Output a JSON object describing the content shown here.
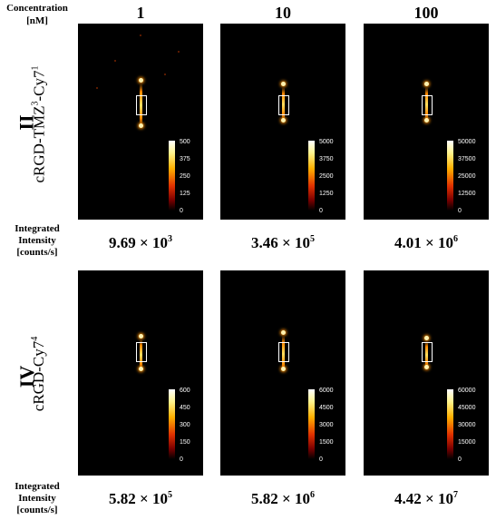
{
  "header": {
    "concentration_label_line1": "Concentration",
    "concentration_label_line2": "[nM]",
    "columns": [
      "1",
      "10",
      "100"
    ]
  },
  "intensity_label": {
    "line1": "Integrated",
    "line2": "Intensity",
    "line3": "[counts/s]"
  },
  "rows": [
    {
      "roman": "II",
      "name_main": "cRGD-TMZ",
      "name_sup1": "3",
      "name_mid": "-Cy7",
      "name_sup2": "1",
      "panels": [
        {
          "ticks": [
            "500",
            "375",
            "250",
            "125",
            "0"
          ],
          "mantissa": "9.69 × 10",
          "exponent": "3"
        },
        {
          "ticks": [
            "5000",
            "3750",
            "2500",
            "1250",
            "0"
          ],
          "mantissa": "3.46 × 10",
          "exponent": "5"
        },
        {
          "ticks": [
            "50000",
            "37500",
            "25000",
            "12500",
            "0"
          ],
          "mantissa": "4.01 × 10",
          "exponent": "6"
        }
      ]
    },
    {
      "roman": "IV",
      "name_main": "cRGD-Cy7",
      "name_sup1": "4",
      "panels": [
        {
          "ticks": [
            "600",
            "450",
            "300",
            "150",
            "0"
          ],
          "mantissa": "5.82 × 10",
          "exponent": "5"
        },
        {
          "ticks": [
            "6000",
            "4500",
            "3000",
            "1500",
            "0"
          ],
          "mantissa": "5.82 × 10",
          "exponent": "6"
        },
        {
          "ticks": [
            "60000",
            "45000",
            "30000",
            "15000",
            "0"
          ],
          "mantissa": "4.42 × 10",
          "exponent": "7"
        }
      ]
    }
  ]
}
